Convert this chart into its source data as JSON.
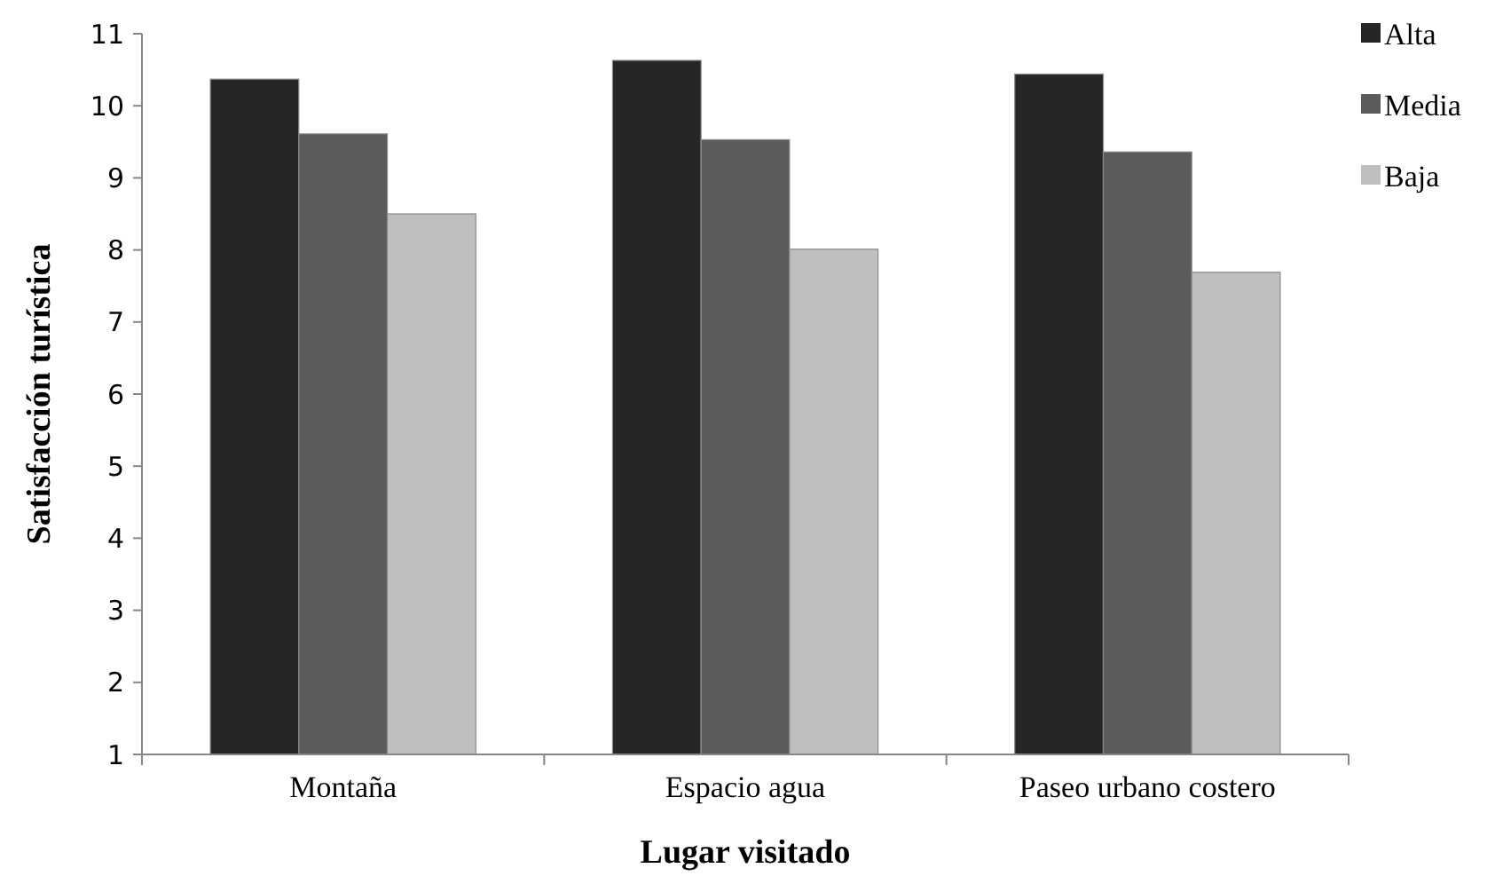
{
  "chart_data": {
    "type": "bar",
    "xlabel": "Lugar visitado",
    "ylabel": "Satisfacción turística",
    "categories": [
      "Montaña",
      "Espacio agua",
      "Paseo urbano costero"
    ],
    "series": [
      {
        "name": "Alta",
        "color": "#262626",
        "values": [
          10.37,
          10.63,
          10.44
        ]
      },
      {
        "name": "Media",
        "color": "#5b5b5b",
        "values": [
          9.61,
          9.53,
          9.36
        ]
      },
      {
        "name": "Baja",
        "color": "#bfbfbf",
        "values": [
          8.5,
          8.01,
          7.69
        ]
      }
    ],
    "ylim": [
      1,
      11
    ],
    "yticks": [
      1,
      2,
      3,
      4,
      5,
      6,
      7,
      8,
      9,
      10,
      11
    ],
    "grid": false,
    "legend": "top right"
  }
}
